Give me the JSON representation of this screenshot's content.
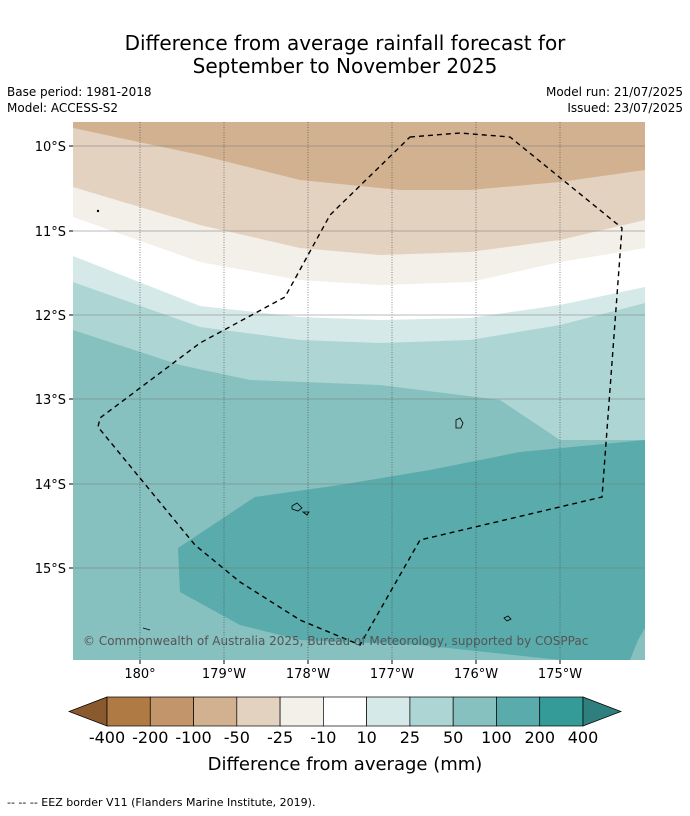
{
  "title": {
    "line1": "Difference from average rainfall forecast for",
    "line2": "September to November 2025"
  },
  "meta_left": {
    "base_period": "Base period: 1981-2018",
    "model": "Model: ACCESS-S2"
  },
  "meta_right": {
    "model_run": "Model run: 21/07/2025",
    "issued": "Issued: 23/07/2025"
  },
  "map": {
    "lat_labels": [
      "10°S",
      "11°S",
      "12°S",
      "13°S",
      "14°S",
      "15°S"
    ],
    "lon_labels": [
      "180°",
      "179°W",
      "178°W",
      "177°W",
      "176°W",
      "175°W"
    ],
    "copyright": "© Commonwealth of Australia 2025, Bureau of Meteorology, supported by COSPPac"
  },
  "colorbar": {
    "ticks": [
      "-400",
      "-200",
      "-100",
      "-50",
      "-25",
      "-10",
      "10",
      "25",
      "50",
      "100",
      "200",
      "400"
    ],
    "colors": [
      "#8a5a2e",
      "#b07a45",
      "#c2956a",
      "#d2b190",
      "#e4d2c0",
      "#f3efe9",
      "#ffffff",
      "#d5e9e8",
      "#add5d4",
      "#86c0bf",
      "#5aabab",
      "#349b98",
      "#2e7f7d"
    ],
    "label": "Difference from average (mm)"
  },
  "footer": "-- -- -- EEZ border V11 (Flanders Marine Institute, 2019)."
}
